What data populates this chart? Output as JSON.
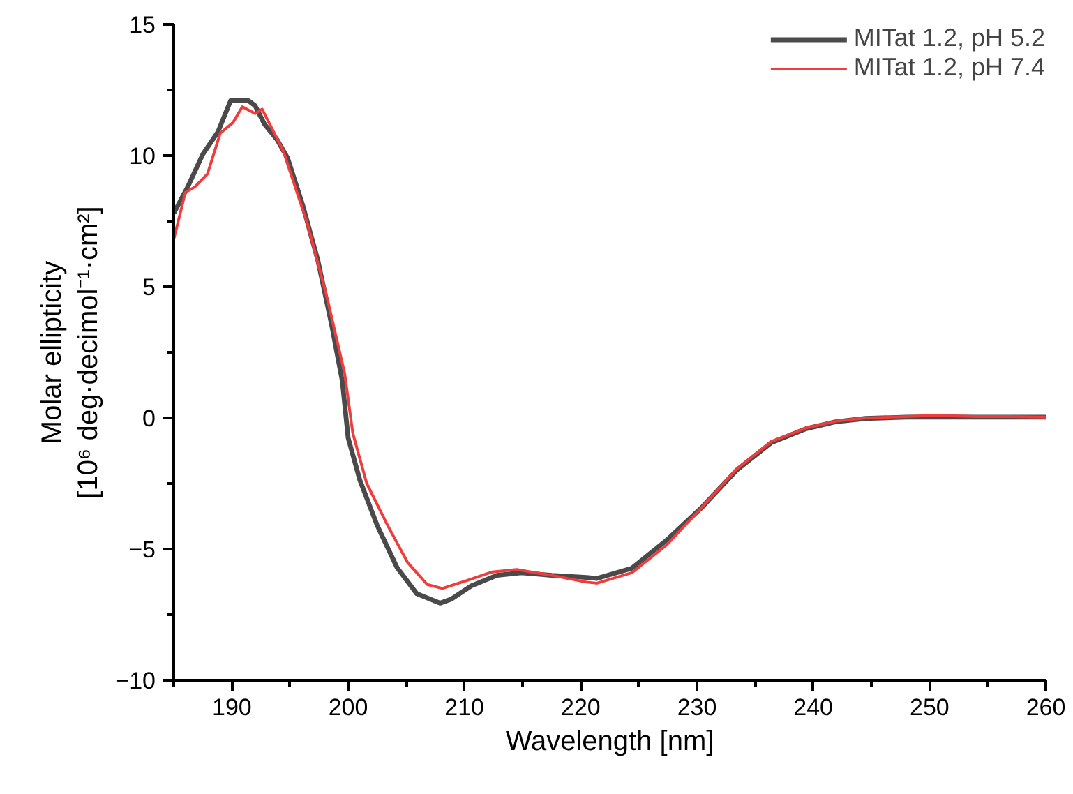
{
  "chart_data": {
    "type": "line",
    "xlabel": "Wavelength [nm]",
    "ylabel": "Molar ellipticity\n[10⁶ deg·decimol⁻¹·cm²]",
    "xlim": [
      185,
      260
    ],
    "ylim": [
      -10,
      15
    ],
    "xticks": [
      {
        "value": 185,
        "label": null
      },
      190,
      {
        "value": 195,
        "label": null
      },
      200,
      {
        "value": 205,
        "label": null
      },
      210,
      {
        "value": 215,
        "label": null
      },
      220,
      {
        "value": 225,
        "label": null
      },
      230,
      {
        "value": 235,
        "label": null
      },
      240,
      {
        "value": 245,
        "label": null
      },
      250,
      {
        "value": 255,
        "label": null
      },
      260
    ],
    "yticks": [
      -10,
      {
        "value": -7.5,
        "label": null
      },
      -5,
      {
        "value": -2.5,
        "label": null
      },
      0,
      {
        "value": 2.5,
        "label": null
      },
      5,
      {
        "value": 7.5,
        "label": null
      },
      10,
      {
        "value": 12.5,
        "label": null
      },
      15
    ],
    "grid": false,
    "legend": "top right",
    "line_style": "solid",
    "marker": "none",
    "series": [
      {
        "name": "MITat 1.2, pH 5.2",
        "color": "#4a4a4a",
        "x": [
          185,
          186.2,
          187.5,
          188.8,
          189.9,
          191.4,
          192.0,
          192.8,
          193.9,
          194.8,
          196.1,
          197.4,
          198.6,
          199.5,
          200.0,
          201.0,
          202.5,
          204.2,
          205.9,
          207.9,
          208.9,
          210.6,
          212.8,
          214.9,
          217.5,
          220.5,
          221.4,
          224.4,
          227.4,
          230.4,
          233.4,
          236.4,
          239.4,
          242.0,
          244.5,
          248.0,
          252.0,
          256.0,
          260.0
        ],
        "values": [
          7.8,
          8.8,
          10.05,
          10.9,
          12.1,
          12.1,
          11.9,
          11.2,
          10.6,
          9.9,
          8.1,
          6.0,
          3.5,
          1.4,
          -0.76,
          -2.36,
          -4.1,
          -5.7,
          -6.7,
          -7.06,
          -6.9,
          -6.4,
          -6.0,
          -5.9,
          -6.0,
          -6.08,
          -6.12,
          -5.73,
          -4.66,
          -3.42,
          -2.0,
          -0.94,
          -0.41,
          -0.14,
          -0.02,
          0.03,
          0.03,
          0.03,
          0.03
        ]
      },
      {
        "name": "MITat 1.2, pH 7.4",
        "color": "#f03c3c",
        "x": [
          185,
          186.0,
          186.8,
          187.9,
          189.0,
          190.1,
          190.9,
          192.0,
          192.6,
          194.4,
          196.5,
          198.2,
          199.7,
          200.4,
          201.6,
          203.4,
          205.1,
          206.8,
          208.1,
          210.2,
          212.4,
          214.5,
          217.5,
          220.5,
          221.4,
          224.4,
          227.4,
          230.4,
          233.4,
          236.4,
          239.4,
          242.0,
          244.5,
          248.0,
          250.5,
          254.0,
          257.0,
          260.0
        ],
        "values": [
          6.8,
          8.6,
          8.8,
          9.3,
          10.85,
          11.26,
          11.86,
          11.6,
          11.77,
          10.2,
          7.4,
          4.56,
          1.7,
          -0.58,
          -2.5,
          -4.1,
          -5.5,
          -6.35,
          -6.5,
          -6.2,
          -5.87,
          -5.78,
          -6.0,
          -6.26,
          -6.3,
          -5.9,
          -4.84,
          -3.42,
          -1.95,
          -0.9,
          -0.38,
          -0.12,
          0.0,
          0.05,
          0.1,
          0.05,
          0.05,
          0.03
        ]
      }
    ]
  }
}
